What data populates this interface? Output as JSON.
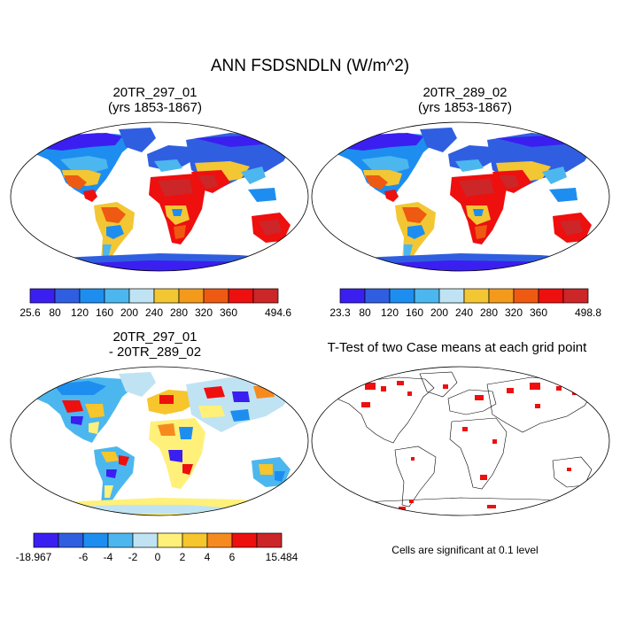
{
  "title": "ANN FSDSNDLN (W/m^2)",
  "panels": [
    {
      "line1": "20TR_297_01",
      "line2": "(yrs 1853-1867)"
    },
    {
      "line1": "20TR_289_02",
      "line2": "(yrs 1853-1867)"
    },
    {
      "line1": "20TR_297_01",
      "line2": "- 20TR_289_02"
    },
    {
      "line1": "T-Test of two Case means at each grid point"
    }
  ],
  "colorbars": [
    {
      "labels": [
        "25.6",
        "80",
        "120",
        "160",
        "200",
        "240",
        "280",
        "320",
        "360",
        "494.6"
      ],
      "colors": [
        "#3b1ff0",
        "#2f5fe0",
        "#1d8ef0",
        "#4cb7ee",
        "#bfe3f2",
        "#f3c634",
        "#f39a1d",
        "#ee5a12",
        "#ee0f0f",
        "#cc2628"
      ]
    },
    {
      "labels": [
        "23.3",
        "80",
        "120",
        "160",
        "200",
        "240",
        "280",
        "320",
        "360",
        "498.8"
      ],
      "colors": [
        "#3b1ff0",
        "#2f5fe0",
        "#1d8ef0",
        "#4cb7ee",
        "#bfe3f2",
        "#f3c634",
        "#f39a1d",
        "#ee5a12",
        "#ee0f0f",
        "#cc2628"
      ]
    },
    {
      "labels": [
        "-18.967",
        "-6",
        "-4",
        "-2",
        "0",
        "2",
        "4",
        "6",
        "15.484"
      ],
      "colors": [
        "#3b1ff0",
        "#2f5fe0",
        "#1d8ef0",
        "#4cb7ee",
        "#bfe3f2",
        "#fff07a",
        "#f7c52c",
        "#f78a1e",
        "#ee0f0f",
        "#cc2628"
      ]
    }
  ],
  "significance_note": "Cells are significant at 0.1 level"
}
